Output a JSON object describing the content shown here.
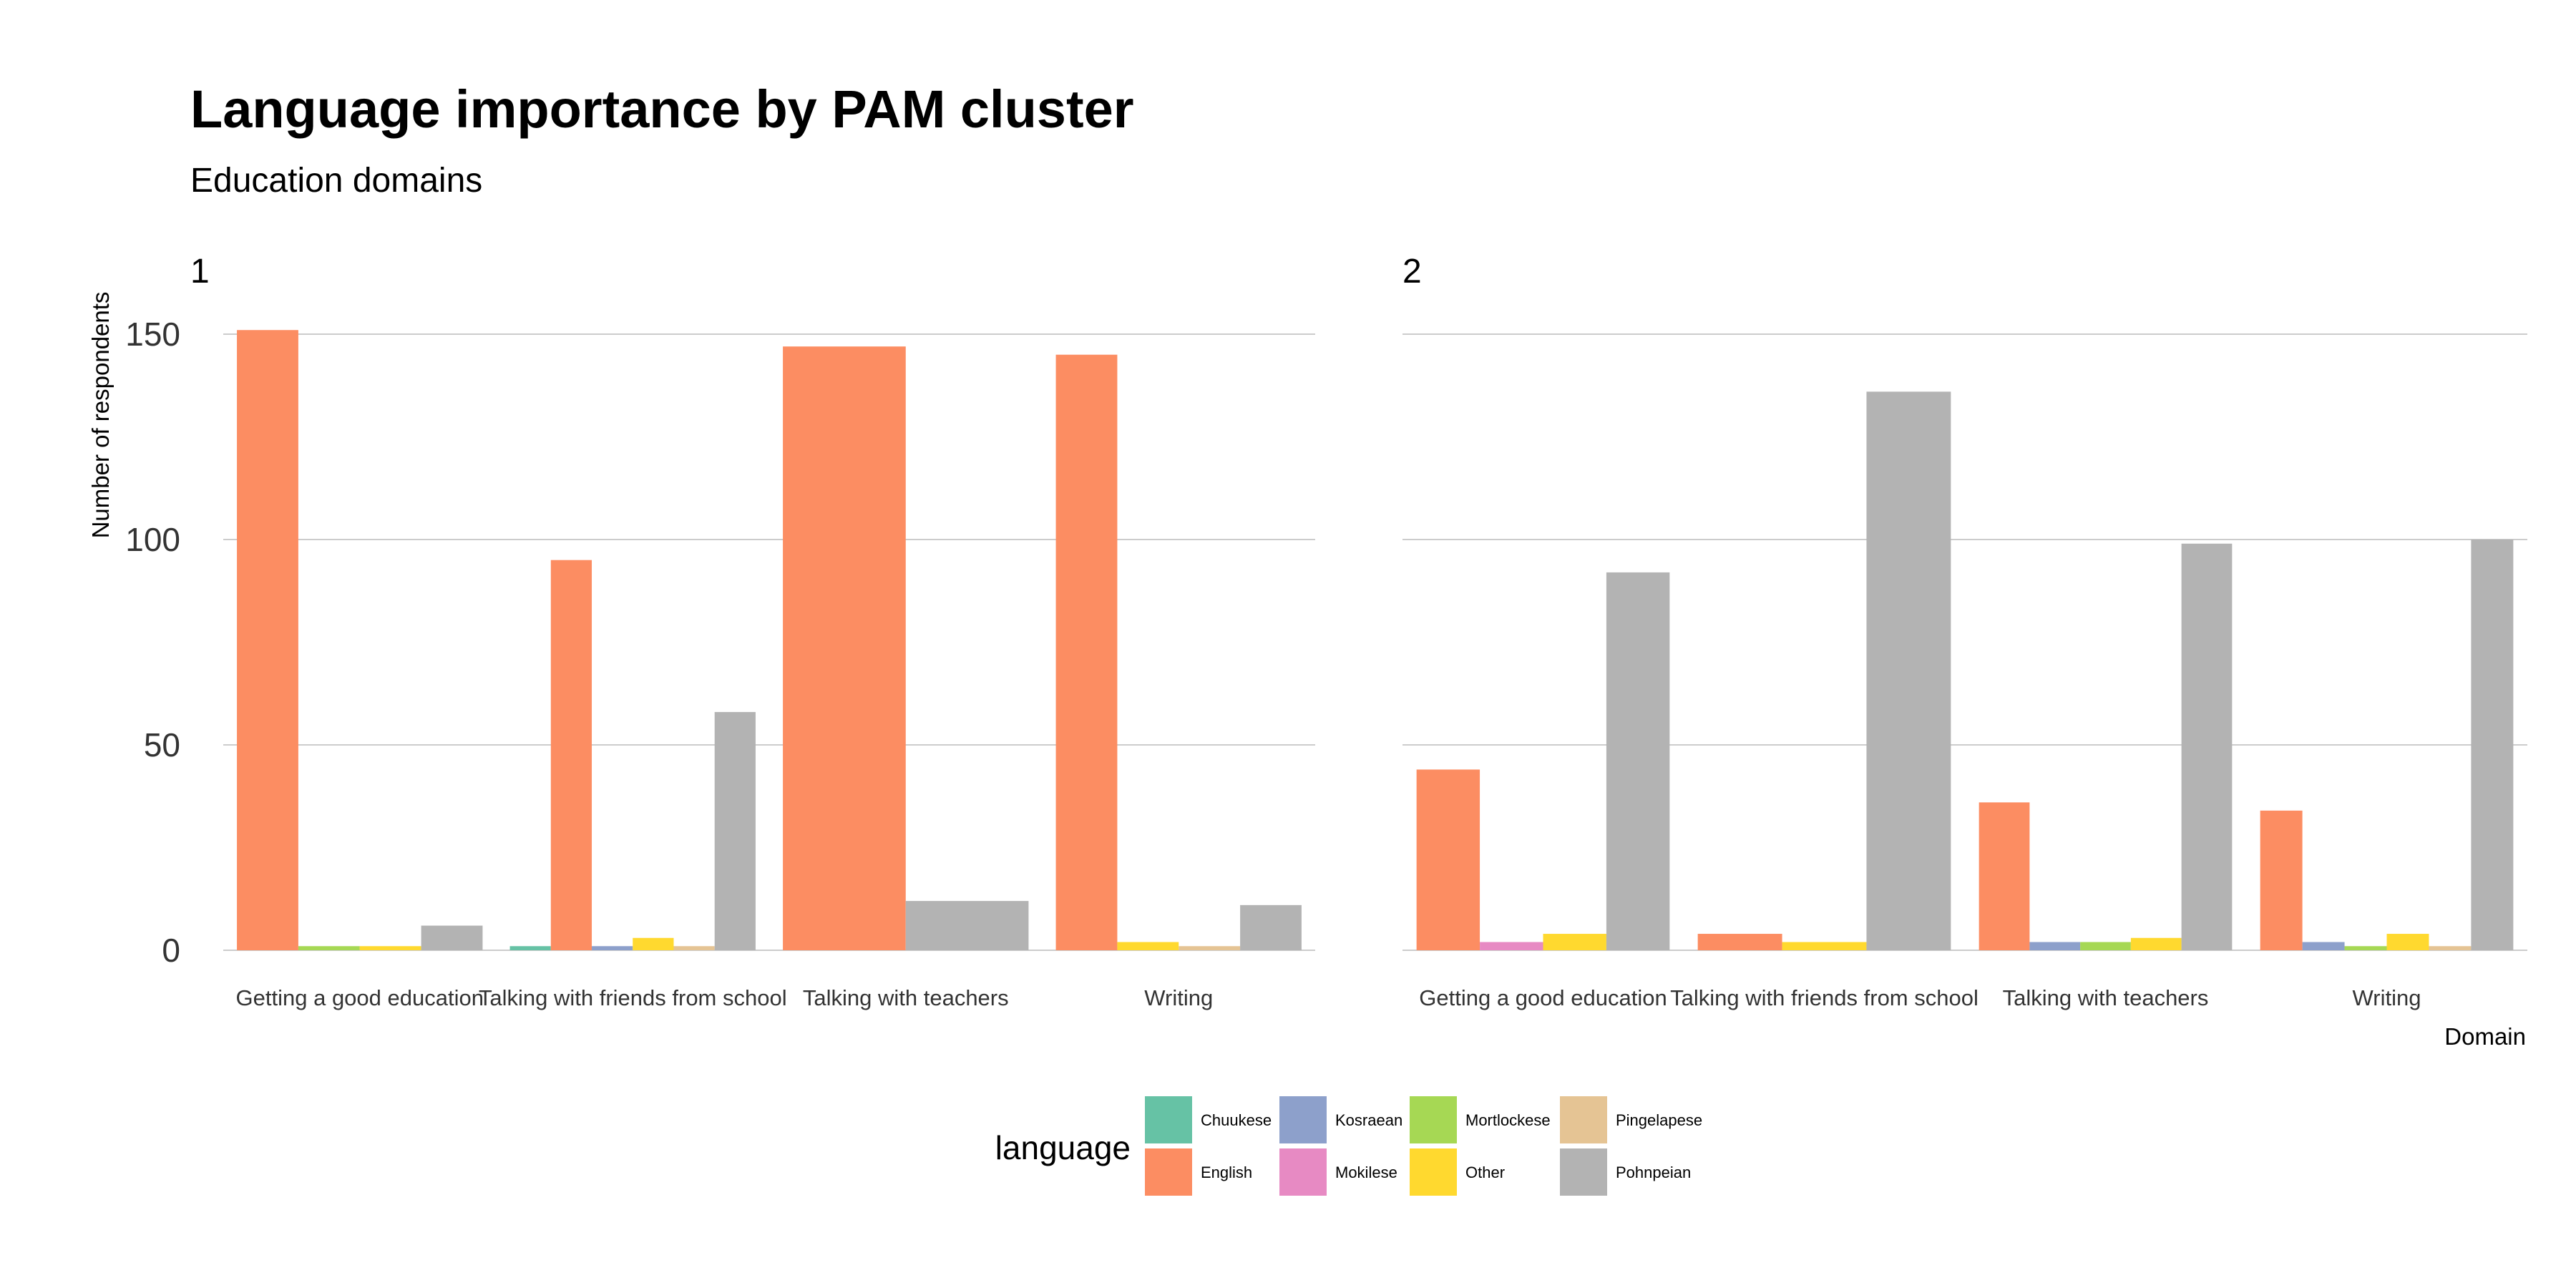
{
  "chart_data": {
    "type": "bar",
    "title": "Language importance by PAM cluster",
    "subtitle": "Education domains",
    "xlabel": "Domain",
    "ylabel": "Number of respondents",
    "ylim": [
      0,
      160
    ],
    "yticks": [
      0,
      50,
      100,
      150
    ],
    "grid": true,
    "legend": {
      "title": "language",
      "placement": "bottom",
      "entries": [
        {
          "name": "Chuukese",
          "color": "#66c2a5"
        },
        {
          "name": "English",
          "color": "#fc8d62"
        },
        {
          "name": "Kosraean",
          "color": "#8da0cb"
        },
        {
          "name": "Mokilese",
          "color": "#e78ac3"
        },
        {
          "name": "Mortlockese",
          "color": "#a6d854"
        },
        {
          "name": "Other",
          "color": "#ffd92f"
        },
        {
          "name": "Pingelapese",
          "color": "#e5c494"
        },
        {
          "name": "Pohnpeian",
          "color": "#b3b3b3"
        }
      ]
    },
    "facets": [
      {
        "label": "1",
        "categories": [
          {
            "name": "Getting a good education",
            "bars": [
              {
                "language": "English",
                "value": 151
              },
              {
                "language": "Mortlockese",
                "value": 1
              },
              {
                "language": "Other",
                "value": 1
              },
              {
                "language": "Pohnpeian",
                "value": 6
              }
            ]
          },
          {
            "name": "Talking with friends from school",
            "bars": [
              {
                "language": "Chuukese",
                "value": 1
              },
              {
                "language": "English",
                "value": 95
              },
              {
                "language": "Kosraean",
                "value": 1
              },
              {
                "language": "Other",
                "value": 3
              },
              {
                "language": "Pingelapese",
                "value": 1
              },
              {
                "language": "Pohnpeian",
                "value": 58
              }
            ]
          },
          {
            "name": "Talking with teachers",
            "bars": [
              {
                "language": "English",
                "value": 147
              },
              {
                "language": "Pohnpeian",
                "value": 12
              }
            ]
          },
          {
            "name": "Writing",
            "bars": [
              {
                "language": "English",
                "value": 145
              },
              {
                "language": "Other",
                "value": 2
              },
              {
                "language": "Pingelapese",
                "value": 1
              },
              {
                "language": "Pohnpeian",
                "value": 11
              }
            ]
          }
        ]
      },
      {
        "label": "2",
        "categories": [
          {
            "name": "Getting a good education",
            "bars": [
              {
                "language": "English",
                "value": 44
              },
              {
                "language": "Mokilese",
                "value": 2
              },
              {
                "language": "Other",
                "value": 4
              },
              {
                "language": "Pohnpeian",
                "value": 92
              }
            ]
          },
          {
            "name": "Talking with friends from school",
            "bars": [
              {
                "language": "English",
                "value": 4
              },
              {
                "language": "Other",
                "value": 2
              },
              {
                "language": "Pohnpeian",
                "value": 136
              }
            ]
          },
          {
            "name": "Talking with teachers",
            "bars": [
              {
                "language": "English",
                "value": 36
              },
              {
                "language": "Kosraean",
                "value": 2
              },
              {
                "language": "Mortlockese",
                "value": 2
              },
              {
                "language": "Other",
                "value": 3
              },
              {
                "language": "Pohnpeian",
                "value": 99
              }
            ]
          },
          {
            "name": "Writing",
            "bars": [
              {
                "language": "English",
                "value": 34
              },
              {
                "language": "Kosraean",
                "value": 2
              },
              {
                "language": "Mortlockese",
                "value": 1
              },
              {
                "language": "Other",
                "value": 4
              },
              {
                "language": "Pingelapese",
                "value": 1
              },
              {
                "language": "Pohnpeian",
                "value": 100
              }
            ]
          }
        ]
      }
    ]
  }
}
